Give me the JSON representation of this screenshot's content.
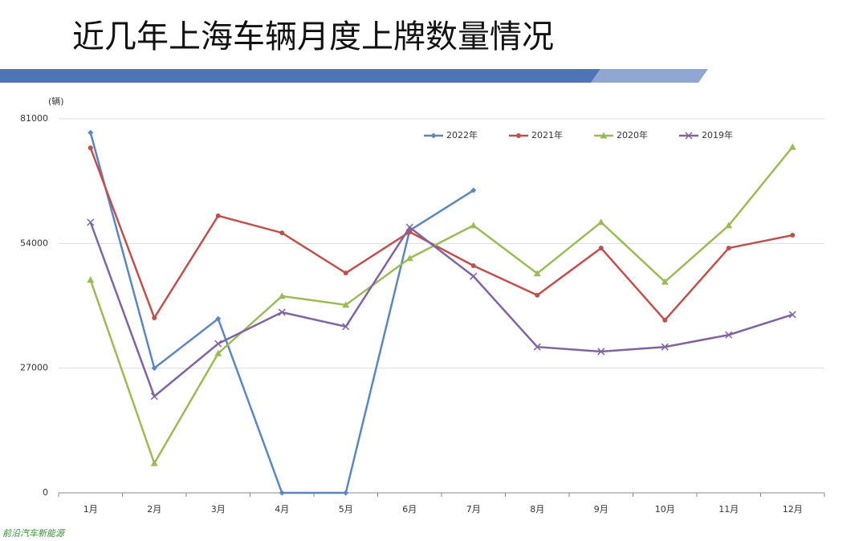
{
  "chart_data": {
    "type": "line",
    "title": "近几年上海车辆月度上牌数量情况",
    "y_unit": "(辆)",
    "watermark": "前沿汽车新能源",
    "categories": [
      "1月",
      "2月",
      "3月",
      "4月",
      "5月",
      "6月",
      "7月",
      "8月",
      "9月",
      "10月",
      "11月",
      "12月"
    ],
    "ylim": [
      0,
      81000
    ],
    "yticks": [
      0,
      27000,
      54000,
      81000
    ],
    "grid": true,
    "series": [
      {
        "name": "2022年",
        "color": "#5b86c0",
        "marker": "diamond",
        "values": [
          78000,
          27000,
          37700,
          0,
          0,
          56800,
          65500,
          null,
          null,
          null,
          null,
          null
        ]
      },
      {
        "name": "2021年",
        "color": "#c0504d",
        "marker": "circle",
        "values": [
          74700,
          37900,
          60000,
          56300,
          47600,
          56500,
          49200,
          42800,
          53000,
          37400,
          53000,
          55800
        ]
      },
      {
        "name": "2020年",
        "color": "#9bbb59",
        "marker": "triangle",
        "values": [
          46100,
          6400,
          30200,
          42600,
          40700,
          50800,
          57900,
          47500,
          58600,
          45700,
          57900,
          74900
        ]
      },
      {
        "name": "2019年",
        "color": "#8064a2",
        "marker": "x",
        "values": [
          58600,
          20900,
          32300,
          39100,
          36000,
          57500,
          46900,
          31600,
          30600,
          31600,
          34200,
          38600
        ]
      }
    ]
  }
}
